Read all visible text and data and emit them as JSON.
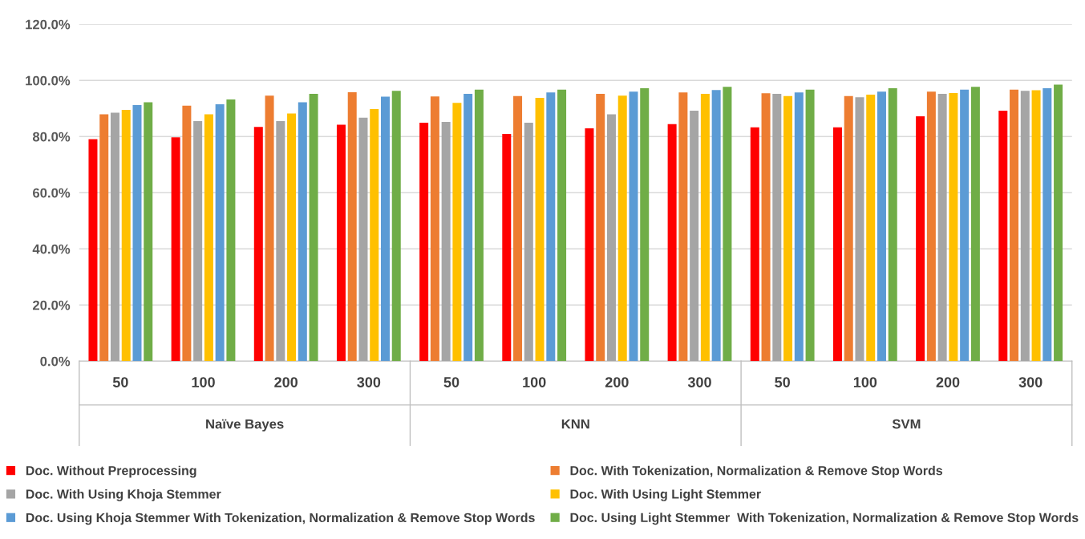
{
  "chart_data": {
    "type": "bar",
    "categories": [
      "50",
      "100",
      "200",
      "300",
      "50",
      "100",
      "200",
      "300",
      "50",
      "100",
      "200",
      "300"
    ],
    "annotations": [
      "Naïve Bayes",
      "KNN",
      "SVM"
    ],
    "ylim": [
      0,
      120
    ],
    "yticks": [
      {
        "value": 0,
        "label": "0.0%"
      },
      {
        "value": 20,
        "label": "20.0%"
      },
      {
        "value": 40,
        "label": "40.0%"
      },
      {
        "value": 60,
        "label": "60.0%"
      },
      {
        "value": 80,
        "label": "80.0%"
      },
      {
        "value": 100,
        "label": "100.0%"
      },
      {
        "value": 120,
        "label": "120.0%"
      }
    ],
    "grid": "y",
    "legend": "bottom",
    "series": [
      {
        "name": "Doc. Without Preprocessing",
        "color": "#ff0000",
        "values": [
          79.1,
          79.7,
          83.4,
          84.2,
          84.9,
          80.9,
          82.9,
          84.4,
          83.3,
          83.3,
          87.2,
          89.2
        ]
      },
      {
        "name": "Doc. With Tokenization, Normalization & Remove Stop Words",
        "color": "#ed7d31",
        "values": [
          87.9,
          91.0,
          94.6,
          95.8,
          94.3,
          94.4,
          95.2,
          95.7,
          95.4,
          94.4,
          96.0,
          96.7
        ]
      },
      {
        "name": "Doc. With Using Khoja Stemmer",
        "color": "#a5a5a5",
        "values": [
          88.5,
          85.5,
          85.5,
          86.7,
          85.2,
          84.9,
          87.9,
          89.2,
          95.2,
          94.0,
          95.2,
          96.3
        ]
      },
      {
        "name": "Doc. With Using Light Stemmer",
        "color": "#ffc000",
        "values": [
          89.5,
          87.9,
          88.2,
          89.8,
          92.0,
          93.8,
          94.6,
          95.2,
          94.4,
          94.9,
          95.5,
          96.5
        ]
      },
      {
        "name": "Doc. Using Khoja Stemmer With Tokenization, Normalization & Remove Stop Words",
        "color": "#5b9bd5",
        "values": [
          91.2,
          91.5,
          92.2,
          94.2,
          95.2,
          95.7,
          96.0,
          96.6,
          95.7,
          96.0,
          96.7,
          97.2
        ]
      },
      {
        "name": "Doc. Using Light Stemmer  With Tokenization, Normalization & Remove Stop Words",
        "color": "#70ad47",
        "values": [
          92.2,
          93.2,
          95.2,
          96.3,
          96.7,
          96.7,
          97.2,
          97.7,
          96.7,
          97.2,
          97.7,
          98.5
        ]
      }
    ]
  }
}
